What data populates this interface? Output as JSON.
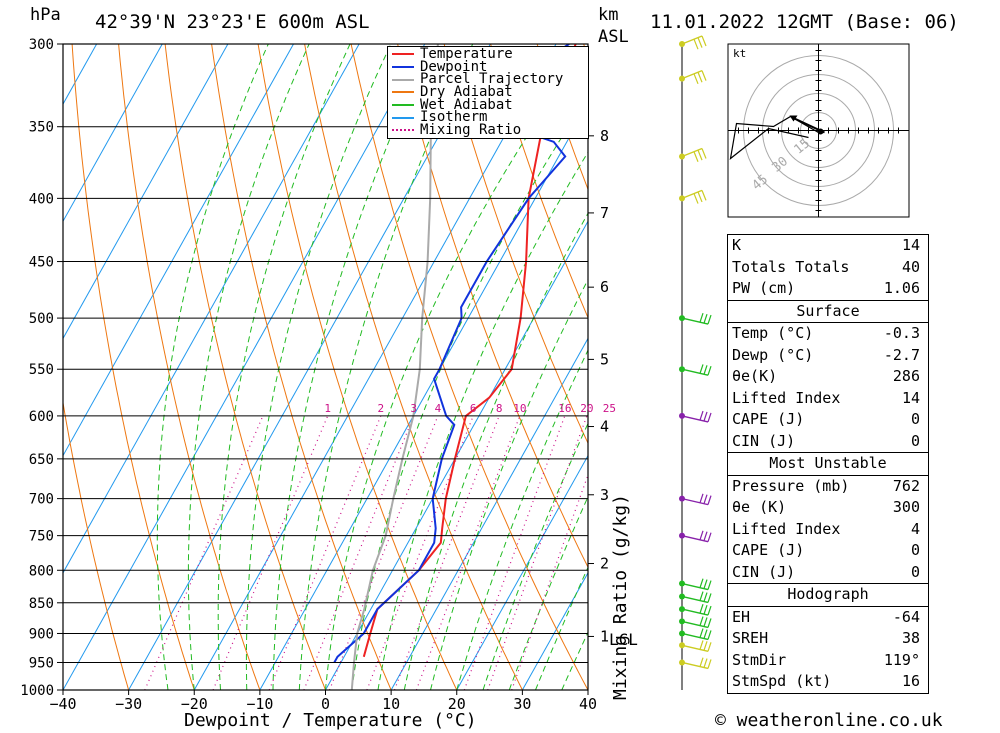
{
  "header": {
    "location": "42°39'N 23°23'E 600m ASL",
    "datetime": "11.01.2022 12GMT (Base: 06)",
    "hpa_label": "hPa",
    "km_label": "km",
    "asl_label": "ASL",
    "xlabel": "Dewpoint / Temperature (°C)",
    "mixing_label": "Mixing Ratio (g/kg)",
    "lcl_label": "LCL",
    "copyright": "© weatheronline.co.uk"
  },
  "legend": [
    {
      "label": "Temperature",
      "color": "#ee2222",
      "style": "solid"
    },
    {
      "label": "Dewpoint",
      "color": "#1133dd",
      "style": "solid"
    },
    {
      "label": "Parcel Trajectory",
      "color": "#aaaaaa",
      "style": "solid"
    },
    {
      "label": "Dry Adiabat",
      "color": "#ee7711",
      "style": "solid"
    },
    {
      "label": "Wet Adiabat",
      "color": "#22bb22",
      "style": "solid"
    },
    {
      "label": "Isotherm",
      "color": "#2299ee",
      "style": "solid"
    },
    {
      "label": "Mixing Ratio",
      "color": "#cc1188",
      "style": "dotted"
    }
  ],
  "chart_data": {
    "type": "line",
    "title": "42°39'N 23°23'E 600m ASL",
    "xlabel": "Dewpoint / Temperature (°C)",
    "ylabel": "hPa",
    "xlim": [
      -40,
      40
    ],
    "ylim": [
      1000,
      300
    ],
    "x_ticks": [
      -40,
      -30,
      -20,
      -10,
      0,
      10,
      20,
      30,
      40
    ],
    "pressure_levels": [
      300,
      350,
      400,
      450,
      500,
      550,
      600,
      650,
      700,
      750,
      800,
      850,
      900,
      950,
      1000
    ],
    "height_km_ticks": [
      "1",
      "2",
      "3",
      "4",
      "5",
      "6",
      "7",
      "8"
    ],
    "mixing_ratio_labels": [
      "1",
      "2",
      "3",
      "4",
      "6",
      "8",
      "10",
      "16",
      "20",
      "25"
    ],
    "series": [
      {
        "name": "Temperature",
        "color": "#ee2222",
        "p": [
          940,
          900,
          860,
          840,
          800,
          760,
          740,
          700,
          650,
          600,
          580,
          550,
          500,
          450,
          400,
          350,
          300
        ],
        "x": [
          3,
          2,
          1,
          2,
          4,
          5,
          4,
          2,
          0,
          -2,
          0,
          1,
          -2,
          -6,
          -11,
          -15,
          -17
        ]
      },
      {
        "name": "Dewpoint",
        "color": "#1133dd",
        "p": [
          950,
          940,
          900,
          860,
          840,
          800,
          760,
          740,
          700,
          650,
          610,
          600,
          560,
          550,
          500,
          490,
          450,
          400,
          370,
          360,
          350,
          340,
          300
        ],
        "x": [
          -1,
          -1,
          1,
          1,
          2,
          4,
          4,
          3,
          0,
          -2,
          -3,
          -5,
          -10,
          -10,
          -11,
          -12,
          -12,
          -11,
          -9,
          -12,
          -20,
          -28,
          -18
        ]
      },
      {
        "name": "Parcel Trajectory",
        "color": "#aaaaaa",
        "p": [
          1000,
          950,
          900,
          860,
          800,
          750,
          700,
          650,
          600,
          550,
          500,
          450,
          400,
          350,
          300
        ],
        "x": [
          4,
          2,
          0,
          -1,
          -3,
          -4,
          -6,
          -8,
          -10,
          -13,
          -17,
          -21,
          -26,
          -32,
          -38
        ]
      }
    ]
  },
  "wind_profile": {
    "barbs": [
      {
        "p": 300,
        "color": "#cccc22"
      },
      {
        "p": 320,
        "color": "#cccc22"
      },
      {
        "p": 370,
        "color": "#cccc22"
      },
      {
        "p": 400,
        "color": "#cccc22"
      },
      {
        "p": 500,
        "color": "#22bb22"
      },
      {
        "p": 550,
        "color": "#22bb22"
      },
      {
        "p": 600,
        "color": "#8822aa"
      },
      {
        "p": 700,
        "color": "#8822aa"
      },
      {
        "p": 750,
        "color": "#8822aa"
      },
      {
        "p": 820,
        "color": "#22bb22"
      },
      {
        "p": 840,
        "color": "#22bb22"
      },
      {
        "p": 860,
        "color": "#22bb22"
      },
      {
        "p": 880,
        "color": "#22bb22"
      },
      {
        "p": 900,
        "color": "#22bb22"
      },
      {
        "p": 920,
        "color": "#cccc22"
      },
      {
        "p": 950,
        "color": "#cccc22"
      }
    ]
  },
  "hodograph": {
    "unit": "kt",
    "rings": [
      "15",
      "30",
      "45"
    ]
  },
  "indices": {
    "top": [
      {
        "label": "K",
        "value": "14"
      },
      {
        "label": "Totals Totals",
        "value": "40"
      },
      {
        "label": "PW (cm)",
        "value": "1.06"
      }
    ],
    "surface_title": "Surface",
    "surface": [
      {
        "label": "Temp (°C)",
        "value": "-0.3"
      },
      {
        "label": "Dewp (°C)",
        "value": "-2.7"
      },
      {
        "label": "θe(K)",
        "value": "286"
      },
      {
        "label": "Lifted Index",
        "value": "14"
      },
      {
        "label": "CAPE (J)",
        "value": "0"
      },
      {
        "label": "CIN (J)",
        "value": "0"
      }
    ],
    "mu_title": "Most Unstable",
    "mu": [
      {
        "label": "Pressure (mb)",
        "value": "762"
      },
      {
        "label": "θe (K)",
        "value": "300"
      },
      {
        "label": "Lifted Index",
        "value": "4"
      },
      {
        "label": "CAPE (J)",
        "value": "0"
      },
      {
        "label": "CIN (J)",
        "value": "0"
      }
    ],
    "hodo_title": "Hodograph",
    "hodo": [
      {
        "label": "EH",
        "value": "-64"
      },
      {
        "label": "SREH",
        "value": "38"
      },
      {
        "label": "StmDir",
        "value": "119°"
      },
      {
        "label": "StmSpd (kt)",
        "value": "16"
      }
    ]
  }
}
